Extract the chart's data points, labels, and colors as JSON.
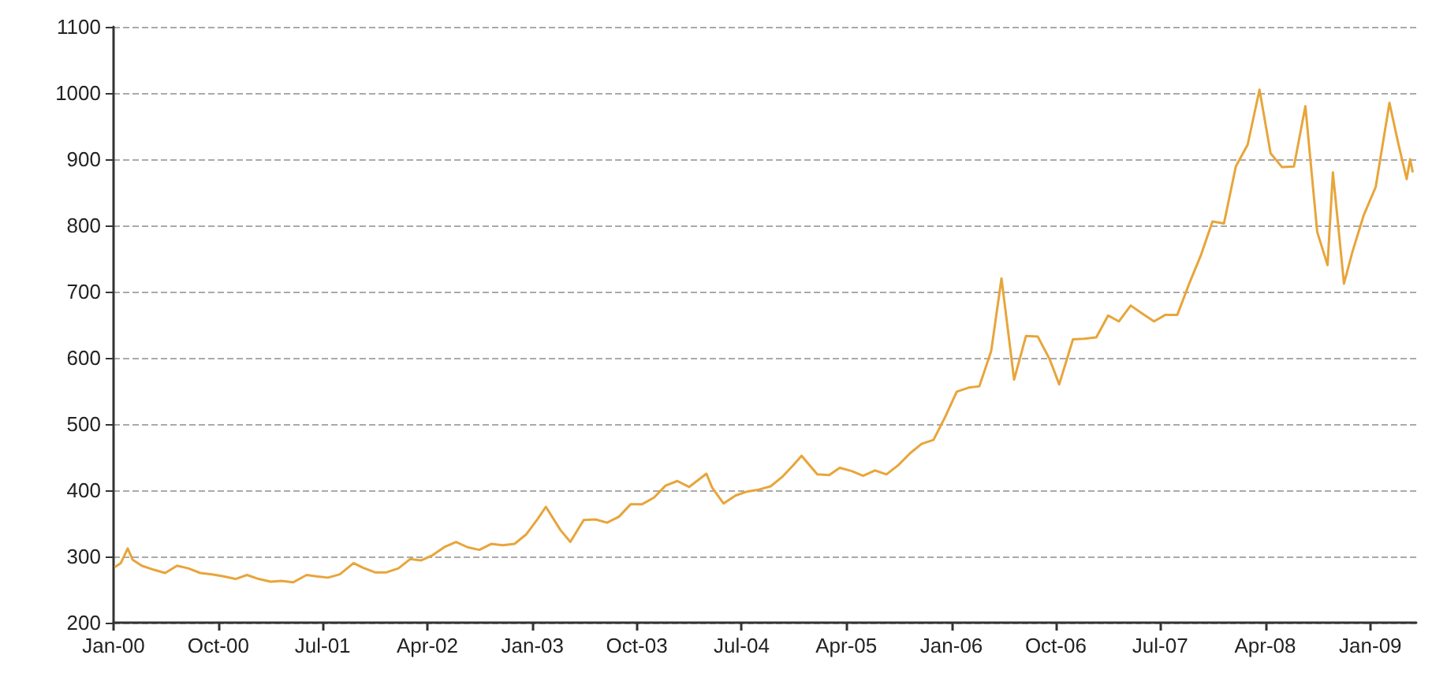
{
  "chart_data": {
    "type": "line",
    "marker": "none",
    "line_style": "solid",
    "grid": "y",
    "xlim": [
      "2000-01-01",
      "2009-05-01"
    ],
    "xticks": [
      {
        "value": "2000-01-01",
        "label": "Jan-00"
      },
      {
        "value": "2000-10-01",
        "label": "Oct-00"
      },
      {
        "value": "2001-07-01",
        "label": "Jul-01"
      },
      {
        "value": "2002-04-01",
        "label": "Apr-02"
      },
      {
        "value": "2003-01-01",
        "label": "Jan-03"
      },
      {
        "value": "2003-10-01",
        "label": "Oct-03"
      },
      {
        "value": "2004-07-01",
        "label": "Jul-04"
      },
      {
        "value": "2005-04-01",
        "label": "Apr-05"
      },
      {
        "value": "2006-01-01",
        "label": "Jan-06"
      },
      {
        "value": "2006-10-01",
        "label": "Oct-06"
      },
      {
        "value": "2007-07-01",
        "label": "Jul-07"
      },
      {
        "value": "2008-04-01",
        "label": "Apr-08"
      },
      {
        "value": "2009-01-01",
        "label": "Jan-09"
      }
    ],
    "ylim": [
      200,
      1100
    ],
    "yticks": [
      200,
      300,
      400,
      500,
      600,
      700,
      800,
      900,
      1000,
      1100
    ],
    "series": [
      {
        "color": "#e8a53a",
        "x": [
          "2000-01-04",
          "2000-01-20",
          "2000-02-07",
          "2000-02-20",
          "2000-03-15",
          "2000-04-15",
          "2000-05-15",
          "2000-06-15",
          "2000-07-15",
          "2000-08-15",
          "2000-09-15",
          "2000-10-15",
          "2000-11-15",
          "2000-12-15",
          "2001-01-15",
          "2001-02-15",
          "2001-03-15",
          "2001-04-15",
          "2001-05-20",
          "2001-06-15",
          "2001-07-15",
          "2001-08-15",
          "2001-09-20",
          "2001-10-15",
          "2001-11-15",
          "2001-12-15",
          "2002-01-15",
          "2002-02-15",
          "2002-03-15",
          "2002-04-15",
          "2002-05-15",
          "2002-06-15",
          "2002-07-15",
          "2002-08-15",
          "2002-09-15",
          "2002-10-15",
          "2002-11-15",
          "2002-12-15",
          "2003-01-15",
          "2003-02-05",
          "2003-03-15",
          "2003-04-10",
          "2003-05-15",
          "2003-06-15",
          "2003-07-15",
          "2003-08-15",
          "2003-09-15",
          "2003-10-15",
          "2003-11-15",
          "2003-12-15",
          "2004-01-15",
          "2004-02-15",
          "2004-03-31",
          "2004-04-15",
          "2004-05-15",
          "2004-06-15",
          "2004-07-15",
          "2004-08-15",
          "2004-09-15",
          "2004-10-15",
          "2004-11-15",
          "2004-12-05",
          "2005-01-15",
          "2005-02-15",
          "2005-03-15",
          "2005-04-15",
          "2005-05-15",
          "2005-06-15",
          "2005-07-15",
          "2005-08-15",
          "2005-09-15",
          "2005-10-15",
          "2005-11-15",
          "2005-12-15",
          "2006-01-15",
          "2006-02-15",
          "2006-03-15",
          "2006-04-15",
          "2006-05-12",
          "2006-06-14",
          "2006-07-15",
          "2006-08-15",
          "2006-09-15",
          "2006-10-10",
          "2006-11-15",
          "2006-12-15",
          "2007-01-15",
          "2007-02-15",
          "2007-03-15",
          "2007-04-15",
          "2007-05-15",
          "2007-06-15",
          "2007-07-15",
          "2007-08-15",
          "2007-09-15",
          "2007-10-15",
          "2007-11-15",
          "2007-12-15",
          "2008-01-15",
          "2008-02-15",
          "2008-03-17",
          "2008-04-15",
          "2008-05-15",
          "2008-06-15",
          "2008-07-15",
          "2008-08-15",
          "2008-09-11",
          "2008-09-25",
          "2008-10-24",
          "2008-11-15",
          "2008-12-15",
          "2009-01-15",
          "2009-02-20",
          "2009-03-15",
          "2009-04-06",
          "2009-04-15",
          "2009-04-22"
        ],
        "values": [
          284,
          290,
          312,
          295,
          286,
          280,
          275,
          286,
          282,
          275,
          273,
          270,
          266,
          272,
          266,
          262,
          263,
          261,
          272,
          270,
          268,
          273,
          290,
          283,
          276,
          276,
          282,
          296,
          294,
          302,
          314,
          322,
          314,
          310,
          319,
          317,
          319,
          333,
          357,
          375,
          340,
          322,
          355,
          356,
          351,
          360,
          379,
          379,
          389,
          407,
          414,
          405,
          425,
          404,
          380,
          392,
          398,
          401,
          406,
          420,
          439,
          452,
          424,
          423,
          434,
          429,
          422,
          430,
          424,
          438,
          456,
          470,
          476,
          510,
          549,
          555,
          557,
          610,
          720,
          567,
          633,
          632,
          598,
          560,
          628,
          629,
          631,
          664,
          655,
          679,
          667,
          655,
          665,
          665,
          712,
          754,
          806,
          803,
          889,
          922,
          1005,
          909,
          888,
          889,
          980,
          790,
          740,
          880,
          712,
          760,
          816,
          858,
          985,
          924,
          870,
          900,
          880
        ]
      }
    ]
  }
}
